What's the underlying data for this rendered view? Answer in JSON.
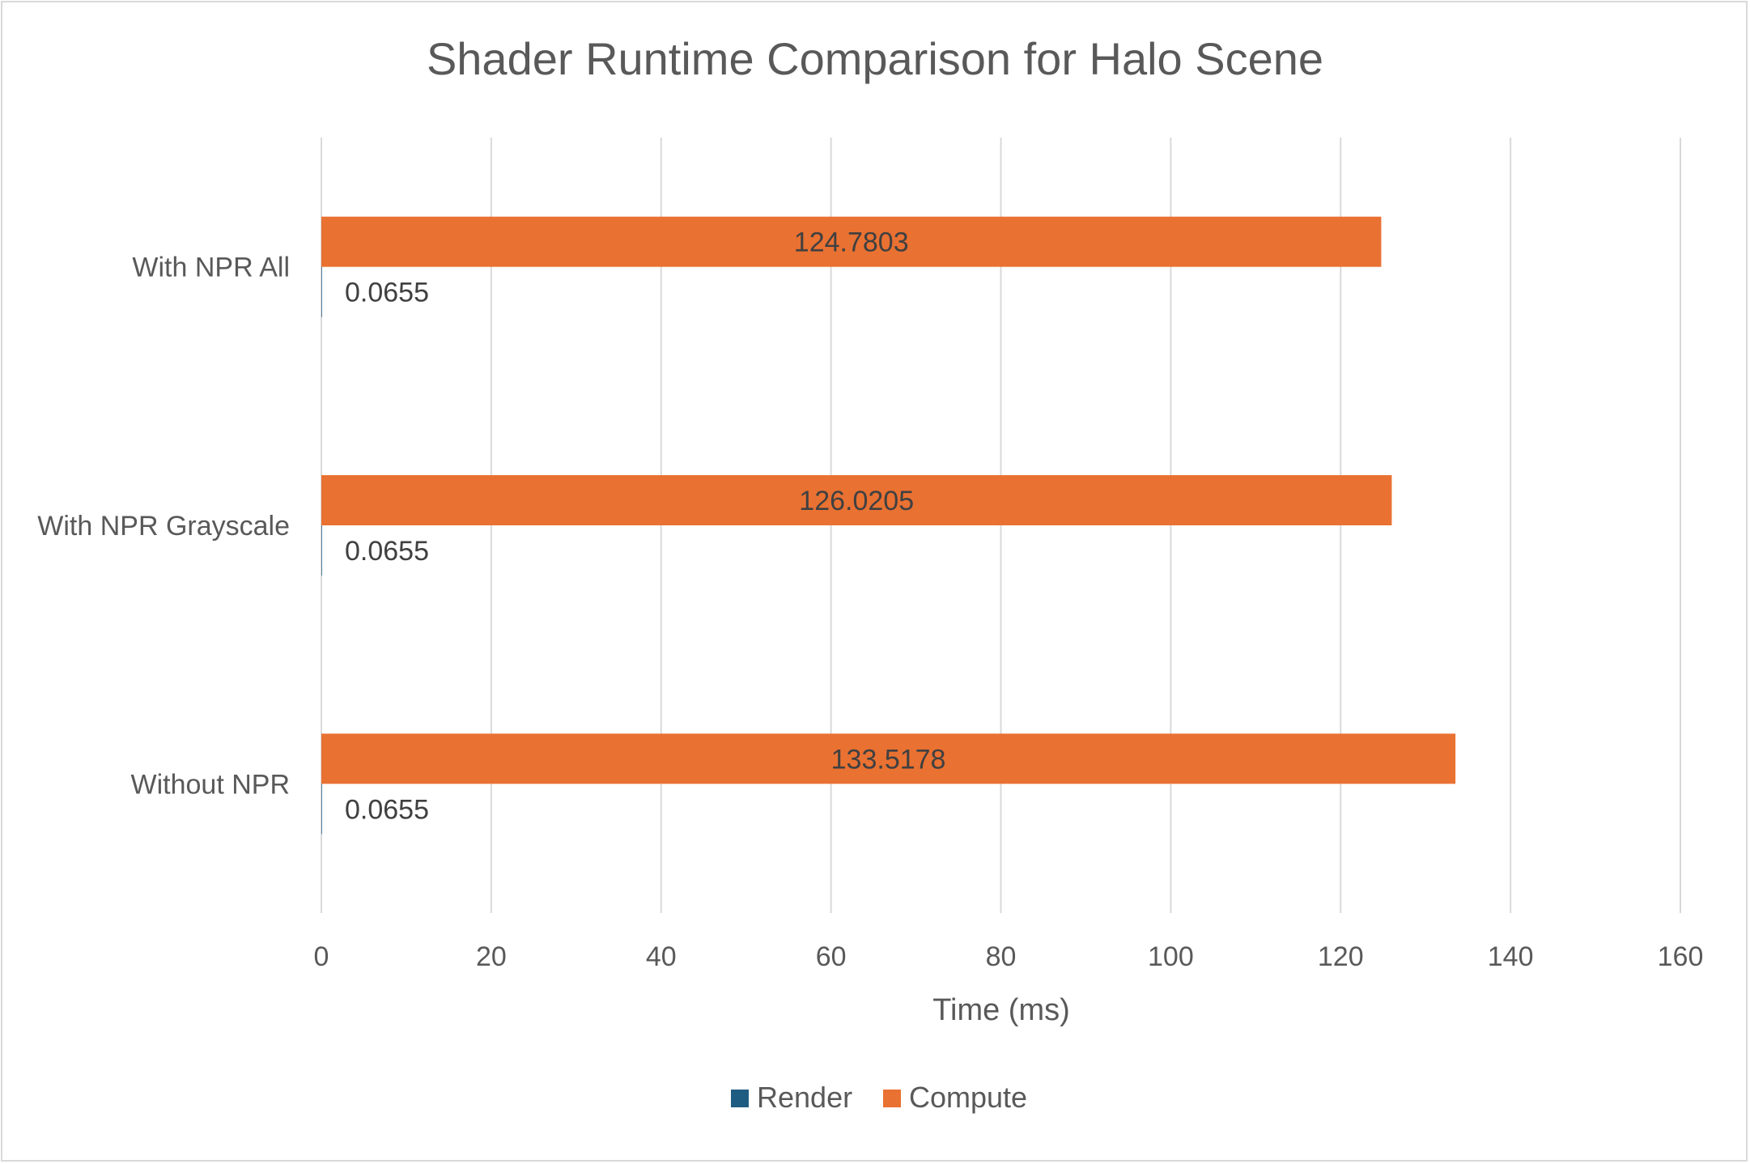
{
  "chart_data": {
    "type": "bar",
    "orientation": "horizontal",
    "title": "Shader Runtime Comparison for Halo Scene",
    "xlabel": "Time (ms)",
    "ylabel": "",
    "xlim": [
      0,
      160
    ],
    "x_ticks": [
      "0",
      "20",
      "40",
      "60",
      "80",
      "100",
      "120",
      "140",
      "160"
    ],
    "categories": [
      "With NPR All",
      "With NPR Grayscale",
      "Without NPR"
    ],
    "series": [
      {
        "name": "Render",
        "color": "#1f5c82",
        "values": [
          0.0655,
          0.0655,
          0.0655
        ],
        "labels": [
          "0.0655",
          "0.0655",
          "0.0655"
        ]
      },
      {
        "name": "Compute",
        "color": "#e97132",
        "values": [
          124.7803,
          126.0205,
          133.5178
        ],
        "labels": [
          "124.7803",
          "126.0205",
          "133.5178"
        ]
      }
    ],
    "grid": "vertical",
    "legend": "bottom"
  }
}
